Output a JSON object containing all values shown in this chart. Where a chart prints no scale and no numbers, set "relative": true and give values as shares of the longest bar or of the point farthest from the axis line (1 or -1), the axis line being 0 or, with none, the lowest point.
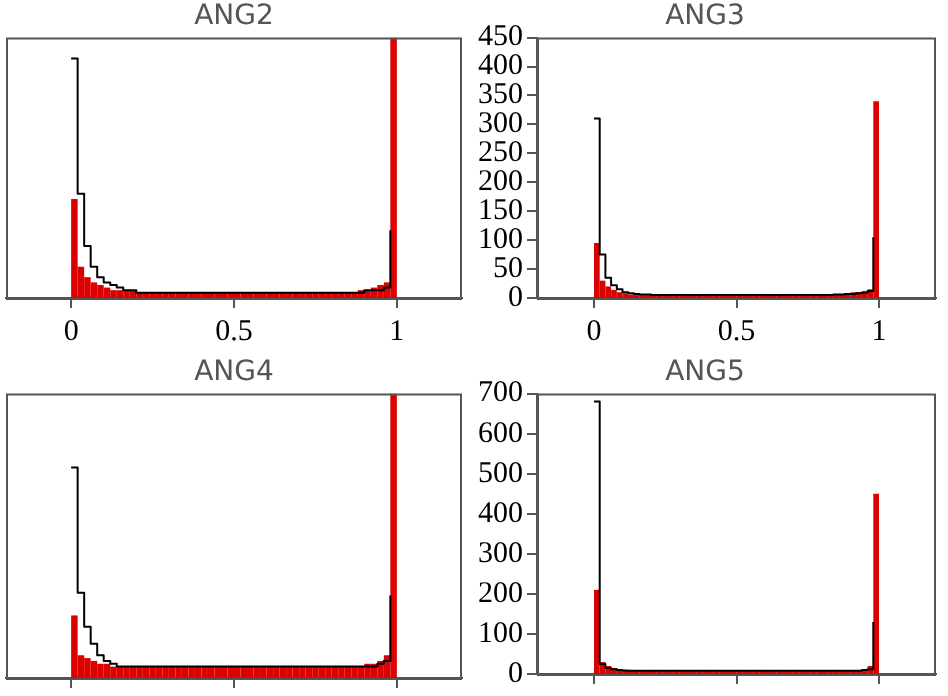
{
  "chart_data": [
    {
      "type": "histogram",
      "title": "ANG2",
      "relative": true,
      "tick_labels": "x",
      "xlim": [
        -0.2,
        1.2
      ],
      "xticks": [
        0,
        0.5,
        1
      ],
      "bins": [
        0,
        0.02,
        0.04,
        0.06,
        0.08,
        0.1,
        0.12,
        0.14,
        0.16,
        0.18,
        0.2,
        0.22,
        0.24,
        0.26,
        0.28,
        0.3,
        0.32,
        0.34,
        0.36,
        0.38,
        0.4,
        0.42,
        0.44,
        0.46,
        0.48,
        0.5,
        0.52,
        0.54,
        0.56,
        0.58,
        0.6,
        0.62,
        0.64,
        0.66,
        0.68,
        0.7,
        0.72,
        0.74,
        0.76,
        0.78,
        0.8,
        0.82,
        0.84,
        0.86,
        0.88,
        0.9,
        0.92,
        0.94,
        0.96,
        0.98,
        1
      ],
      "series": [
        {
          "type": "histogram",
          "color": "#dd0000",
          "values": [
            0.38,
            0.12,
            0.08,
            0.06,
            0.05,
            0.04,
            0.03,
            0.03,
            0.03,
            0.03,
            0.02,
            0.02,
            0.02,
            0.02,
            0.02,
            0.02,
            0.02,
            0.02,
            0.02,
            0.02,
            0.02,
            0.02,
            0.02,
            0.02,
            0.02,
            0.02,
            0.02,
            0.02,
            0.02,
            0.02,
            0.02,
            0.02,
            0.02,
            0.02,
            0.02,
            0.02,
            0.02,
            0.02,
            0.02,
            0.02,
            0.02,
            0.02,
            0.02,
            0.02,
            0.03,
            0.03,
            0.04,
            0.05,
            0.06,
            1
          ]
        },
        {
          "type": "step",
          "color": "#000000",
          "x": [
            0,
            0.02,
            0.04,
            0.06,
            0.08,
            0.1,
            0.12,
            0.14,
            0.16,
            0.18,
            0.2,
            0.22,
            0.24,
            0.26,
            0.28,
            0.3,
            0.32,
            0.34,
            0.36,
            0.38,
            0.4,
            0.42,
            0.44,
            0.46,
            0.48,
            0.5,
            0.52,
            0.54,
            0.56,
            0.58,
            0.6,
            0.62,
            0.64,
            0.66,
            0.68,
            0.7,
            0.72,
            0.74,
            0.76,
            0.78,
            0.8,
            0.82,
            0.84,
            0.86,
            0.88,
            0.9,
            0.92,
            0.94,
            0.96,
            0.98
          ],
          "values": [
            0.92,
            0.4,
            0.2,
            0.12,
            0.08,
            0.06,
            0.05,
            0.04,
            0.03,
            0.03,
            0.02,
            0.02,
            0.02,
            0.02,
            0.02,
            0.02,
            0.02,
            0.02,
            0.02,
            0.02,
            0.02,
            0.02,
            0.02,
            0.02,
            0.02,
            0.02,
            0.02,
            0.02,
            0.02,
            0.02,
            0.02,
            0.02,
            0.02,
            0.02,
            0.02,
            0.02,
            0.02,
            0.02,
            0.02,
            0.02,
            0.02,
            0.02,
            0.02,
            0.02,
            0.02,
            0.03,
            0.03,
            0.03,
            0.04,
            0.26
          ]
        }
      ]
    },
    {
      "type": "histogram",
      "title": "ANG3",
      "xlim": [
        -0.2,
        1.2
      ],
      "xticks": [
        0,
        0.5,
        1
      ],
      "ylim": [
        0,
        450
      ],
      "yticks": [
        0,
        50,
        100,
        150,
        200,
        250,
        300,
        350,
        400,
        450
      ],
      "bins": [
        0,
        0.02,
        0.04,
        0.06,
        0.08,
        0.1,
        0.12,
        0.14,
        0.16,
        0.18,
        0.2,
        0.22,
        0.24,
        0.26,
        0.28,
        0.3,
        0.32,
        0.34,
        0.36,
        0.38,
        0.4,
        0.42,
        0.44,
        0.46,
        0.48,
        0.5,
        0.52,
        0.54,
        0.56,
        0.58,
        0.6,
        0.62,
        0.64,
        0.66,
        0.68,
        0.7,
        0.72,
        0.74,
        0.76,
        0.78,
        0.8,
        0.82,
        0.84,
        0.86,
        0.88,
        0.9,
        0.92,
        0.94,
        0.96,
        0.98,
        1
      ],
      "series": [
        {
          "type": "histogram",
          "color": "#dd0000",
          "values": [
            95,
            30,
            20,
            14,
            10,
            8,
            6,
            5,
            5,
            5,
            5,
            5,
            5,
            5,
            5,
            5,
            5,
            5,
            5,
            5,
            5,
            5,
            5,
            5,
            5,
            5,
            5,
            5,
            5,
            5,
            5,
            5,
            5,
            5,
            5,
            5,
            5,
            5,
            5,
            5,
            5,
            5,
            6,
            7,
            8,
            10,
            10,
            12,
            15,
            340
          ]
        },
        {
          "type": "step",
          "color": "#000000",
          "x": [
            0,
            0.02,
            0.04,
            0.06,
            0.08,
            0.1,
            0.12,
            0.14,
            0.16,
            0.18,
            0.2,
            0.22,
            0.24,
            0.26,
            0.28,
            0.3,
            0.32,
            0.34,
            0.36,
            0.38,
            0.4,
            0.42,
            0.44,
            0.46,
            0.48,
            0.5,
            0.52,
            0.54,
            0.56,
            0.58,
            0.6,
            0.62,
            0.64,
            0.66,
            0.68,
            0.7,
            0.72,
            0.74,
            0.76,
            0.78,
            0.8,
            0.82,
            0.84,
            0.86,
            0.88,
            0.9,
            0.92,
            0.94,
            0.96,
            0.98
          ],
          "values": [
            310,
            75,
            35,
            22,
            15,
            10,
            8,
            7,
            6,
            6,
            5,
            5,
            5,
            5,
            5,
            5,
            5,
            5,
            5,
            5,
            5,
            5,
            5,
            5,
            5,
            5,
            5,
            5,
            5,
            5,
            5,
            5,
            5,
            5,
            5,
            5,
            5,
            5,
            5,
            5,
            5,
            5,
            6,
            6,
            7,
            7,
            8,
            9,
            12,
            105
          ]
        }
      ]
    },
    {
      "type": "histogram",
      "title": "ANG4",
      "relative": true,
      "tick_labels": false,
      "xlim": [
        -0.2,
        1.2
      ],
      "xticks": [
        {
          "value": 0,
          "label": null
        },
        {
          "value": 0.5,
          "label": null
        },
        {
          "value": 1,
          "label": null
        }
      ],
      "bins": [
        0,
        0.02,
        0.04,
        0.06,
        0.08,
        0.1,
        0.12,
        0.14,
        0.16,
        0.18,
        0.2,
        0.22,
        0.24,
        0.26,
        0.28,
        0.3,
        0.32,
        0.34,
        0.36,
        0.38,
        0.4,
        0.42,
        0.44,
        0.46,
        0.48,
        0.5,
        0.52,
        0.54,
        0.56,
        0.58,
        0.6,
        0.62,
        0.64,
        0.66,
        0.68,
        0.7,
        0.72,
        0.74,
        0.76,
        0.78,
        0.8,
        0.82,
        0.84,
        0.86,
        0.88,
        0.9,
        0.92,
        0.94,
        0.96,
        0.98,
        1
      ],
      "series": [
        {
          "type": "histogram",
          "color": "#dd0000",
          "values": [
            0.22,
            0.08,
            0.07,
            0.06,
            0.05,
            0.05,
            0.04,
            0.04,
            0.04,
            0.04,
            0.04,
            0.04,
            0.04,
            0.04,
            0.04,
            0.04,
            0.04,
            0.04,
            0.04,
            0.04,
            0.04,
            0.04,
            0.04,
            0.04,
            0.04,
            0.04,
            0.04,
            0.04,
            0.04,
            0.04,
            0.04,
            0.04,
            0.04,
            0.04,
            0.04,
            0.04,
            0.04,
            0.04,
            0.04,
            0.04,
            0.04,
            0.04,
            0.04,
            0.04,
            0.04,
            0.05,
            0.05,
            0.06,
            0.08,
            1
          ]
        },
        {
          "type": "step",
          "color": "#000000",
          "x": [
            0,
            0.02,
            0.04,
            0.06,
            0.08,
            0.1,
            0.12,
            0.14,
            0.16,
            0.18,
            0.2,
            0.22,
            0.24,
            0.26,
            0.28,
            0.3,
            0.32,
            0.34,
            0.36,
            0.38,
            0.4,
            0.42,
            0.44,
            0.46,
            0.48,
            0.5,
            0.52,
            0.54,
            0.56,
            0.58,
            0.6,
            0.62,
            0.64,
            0.66,
            0.68,
            0.7,
            0.72,
            0.74,
            0.76,
            0.78,
            0.8,
            0.82,
            0.84,
            0.86,
            0.88,
            0.9,
            0.92,
            0.94,
            0.96,
            0.98
          ],
          "values": [
            0.74,
            0.3,
            0.18,
            0.12,
            0.08,
            0.06,
            0.05,
            0.04,
            0.04,
            0.04,
            0.04,
            0.04,
            0.04,
            0.04,
            0.04,
            0.04,
            0.04,
            0.04,
            0.04,
            0.04,
            0.04,
            0.04,
            0.04,
            0.04,
            0.04,
            0.04,
            0.04,
            0.04,
            0.04,
            0.04,
            0.04,
            0.04,
            0.04,
            0.04,
            0.04,
            0.04,
            0.04,
            0.04,
            0.04,
            0.04,
            0.04,
            0.04,
            0.04,
            0.04,
            0.04,
            0.04,
            0.04,
            0.05,
            0.06,
            0.29
          ]
        }
      ]
    },
    {
      "type": "histogram",
      "title": "ANG5",
      "tick_labels": "y",
      "xlim": [
        -0.2,
        1.2
      ],
      "xticks": [
        0,
        0.5,
        1
      ],
      "ylim": [
        0,
        700
      ],
      "yticks": [
        0,
        100,
        200,
        300,
        400,
        500,
        600,
        700
      ],
      "bins": [
        0,
        0.02,
        0.04,
        0.06,
        0.08,
        0.1,
        0.12,
        0.14,
        0.16,
        0.18,
        0.2,
        0.22,
        0.24,
        0.26,
        0.28,
        0.3,
        0.32,
        0.34,
        0.36,
        0.38,
        0.4,
        0.42,
        0.44,
        0.46,
        0.48,
        0.5,
        0.52,
        0.54,
        0.56,
        0.58,
        0.6,
        0.62,
        0.64,
        0.66,
        0.68,
        0.7,
        0.72,
        0.74,
        0.76,
        0.78,
        0.8,
        0.82,
        0.84,
        0.86,
        0.88,
        0.9,
        0.92,
        0.94,
        0.96,
        0.98,
        1
      ],
      "series": [
        {
          "type": "histogram",
          "color": "#dd0000",
          "values": [
            210,
            30,
            20,
            15,
            12,
            10,
            8,
            8,
            8,
            8,
            8,
            8,
            8,
            8,
            8,
            8,
            8,
            8,
            8,
            8,
            8,
            8,
            8,
            8,
            8,
            8,
            8,
            8,
            8,
            8,
            8,
            8,
            8,
            8,
            8,
            8,
            8,
            8,
            8,
            8,
            8,
            8,
            8,
            8,
            8,
            10,
            10,
            12,
            20,
            450
          ]
        },
        {
          "type": "step",
          "color": "#000000",
          "x": [
            0,
            0.02,
            0.04,
            0.06,
            0.08,
            0.1,
            0.12,
            0.14,
            0.16,
            0.18,
            0.2,
            0.22,
            0.24,
            0.26,
            0.28,
            0.3,
            0.32,
            0.34,
            0.36,
            0.38,
            0.4,
            0.42,
            0.44,
            0.46,
            0.48,
            0.5,
            0.52,
            0.54,
            0.56,
            0.58,
            0.6,
            0.62,
            0.64,
            0.66,
            0.68,
            0.7,
            0.72,
            0.74,
            0.76,
            0.78,
            0.8,
            0.82,
            0.84,
            0.86,
            0.88,
            0.9,
            0.92,
            0.94,
            0.96,
            0.98
          ],
          "values": [
            680,
            25,
            15,
            12,
            10,
            9,
            8,
            8,
            8,
            8,
            8,
            8,
            8,
            8,
            8,
            8,
            8,
            8,
            8,
            8,
            8,
            8,
            8,
            8,
            8,
            8,
            8,
            8,
            8,
            8,
            8,
            8,
            8,
            8,
            8,
            8,
            8,
            8,
            8,
            8,
            8,
            8,
            8,
            8,
            8,
            8,
            8,
            10,
            12,
            130
          ]
        }
      ]
    }
  ]
}
